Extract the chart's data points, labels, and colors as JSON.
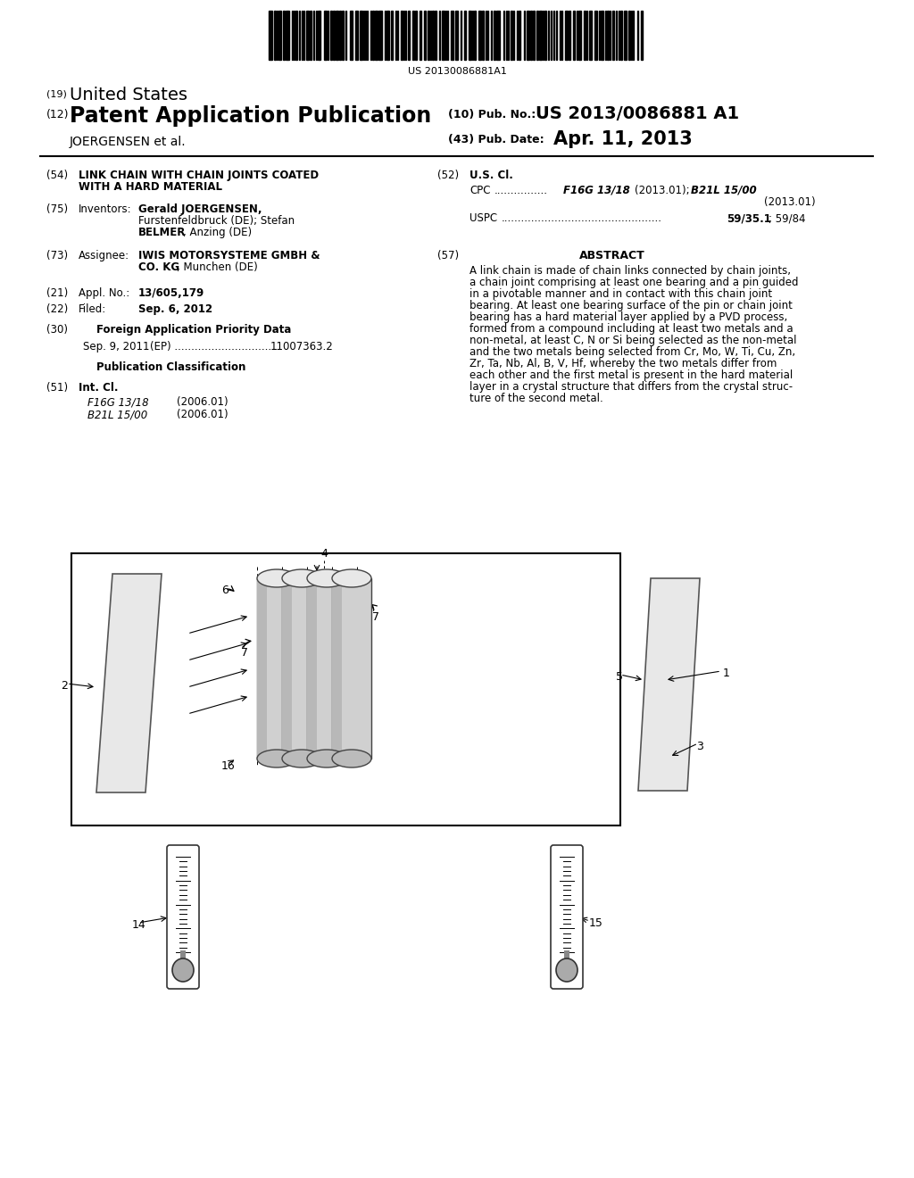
{
  "background_color": "#ffffff",
  "barcode_text": "US 20130086881A1",
  "title_19": "(19) United States",
  "title_12": "(12) Patent Application Publication",
  "pub_no_label": "(10) Pub. No.:",
  "pub_no_value": "US 2013/0086881 A1",
  "inventor_label": "JOERGENSEN et al.",
  "pub_date_label": "(43) Pub. Date:",
  "pub_date_value": "Apr. 11, 2013",
  "abstract_text": "A link chain is made of chain links connected by chain joints, a chain joint comprising at least one bearing and a pin guided in a pivotable manner and in contact with this chain joint bearing. At least one bearing surface of the pin or chain joint bearing has a hard material layer applied by a PVD process, formed from a compound including at least two metals and a non-metal, at least C, N or Si being selected as the non-metal and the two metals being selected from Cr, Mo, W, Ti, Cu, Zn, Zr, Ta, Nb, Al, B, V, Hf, whereby the two metals differ from each other and the first metal is present in the hard material layer in a crystal structure that differs from the crystal structure of the second metal."
}
